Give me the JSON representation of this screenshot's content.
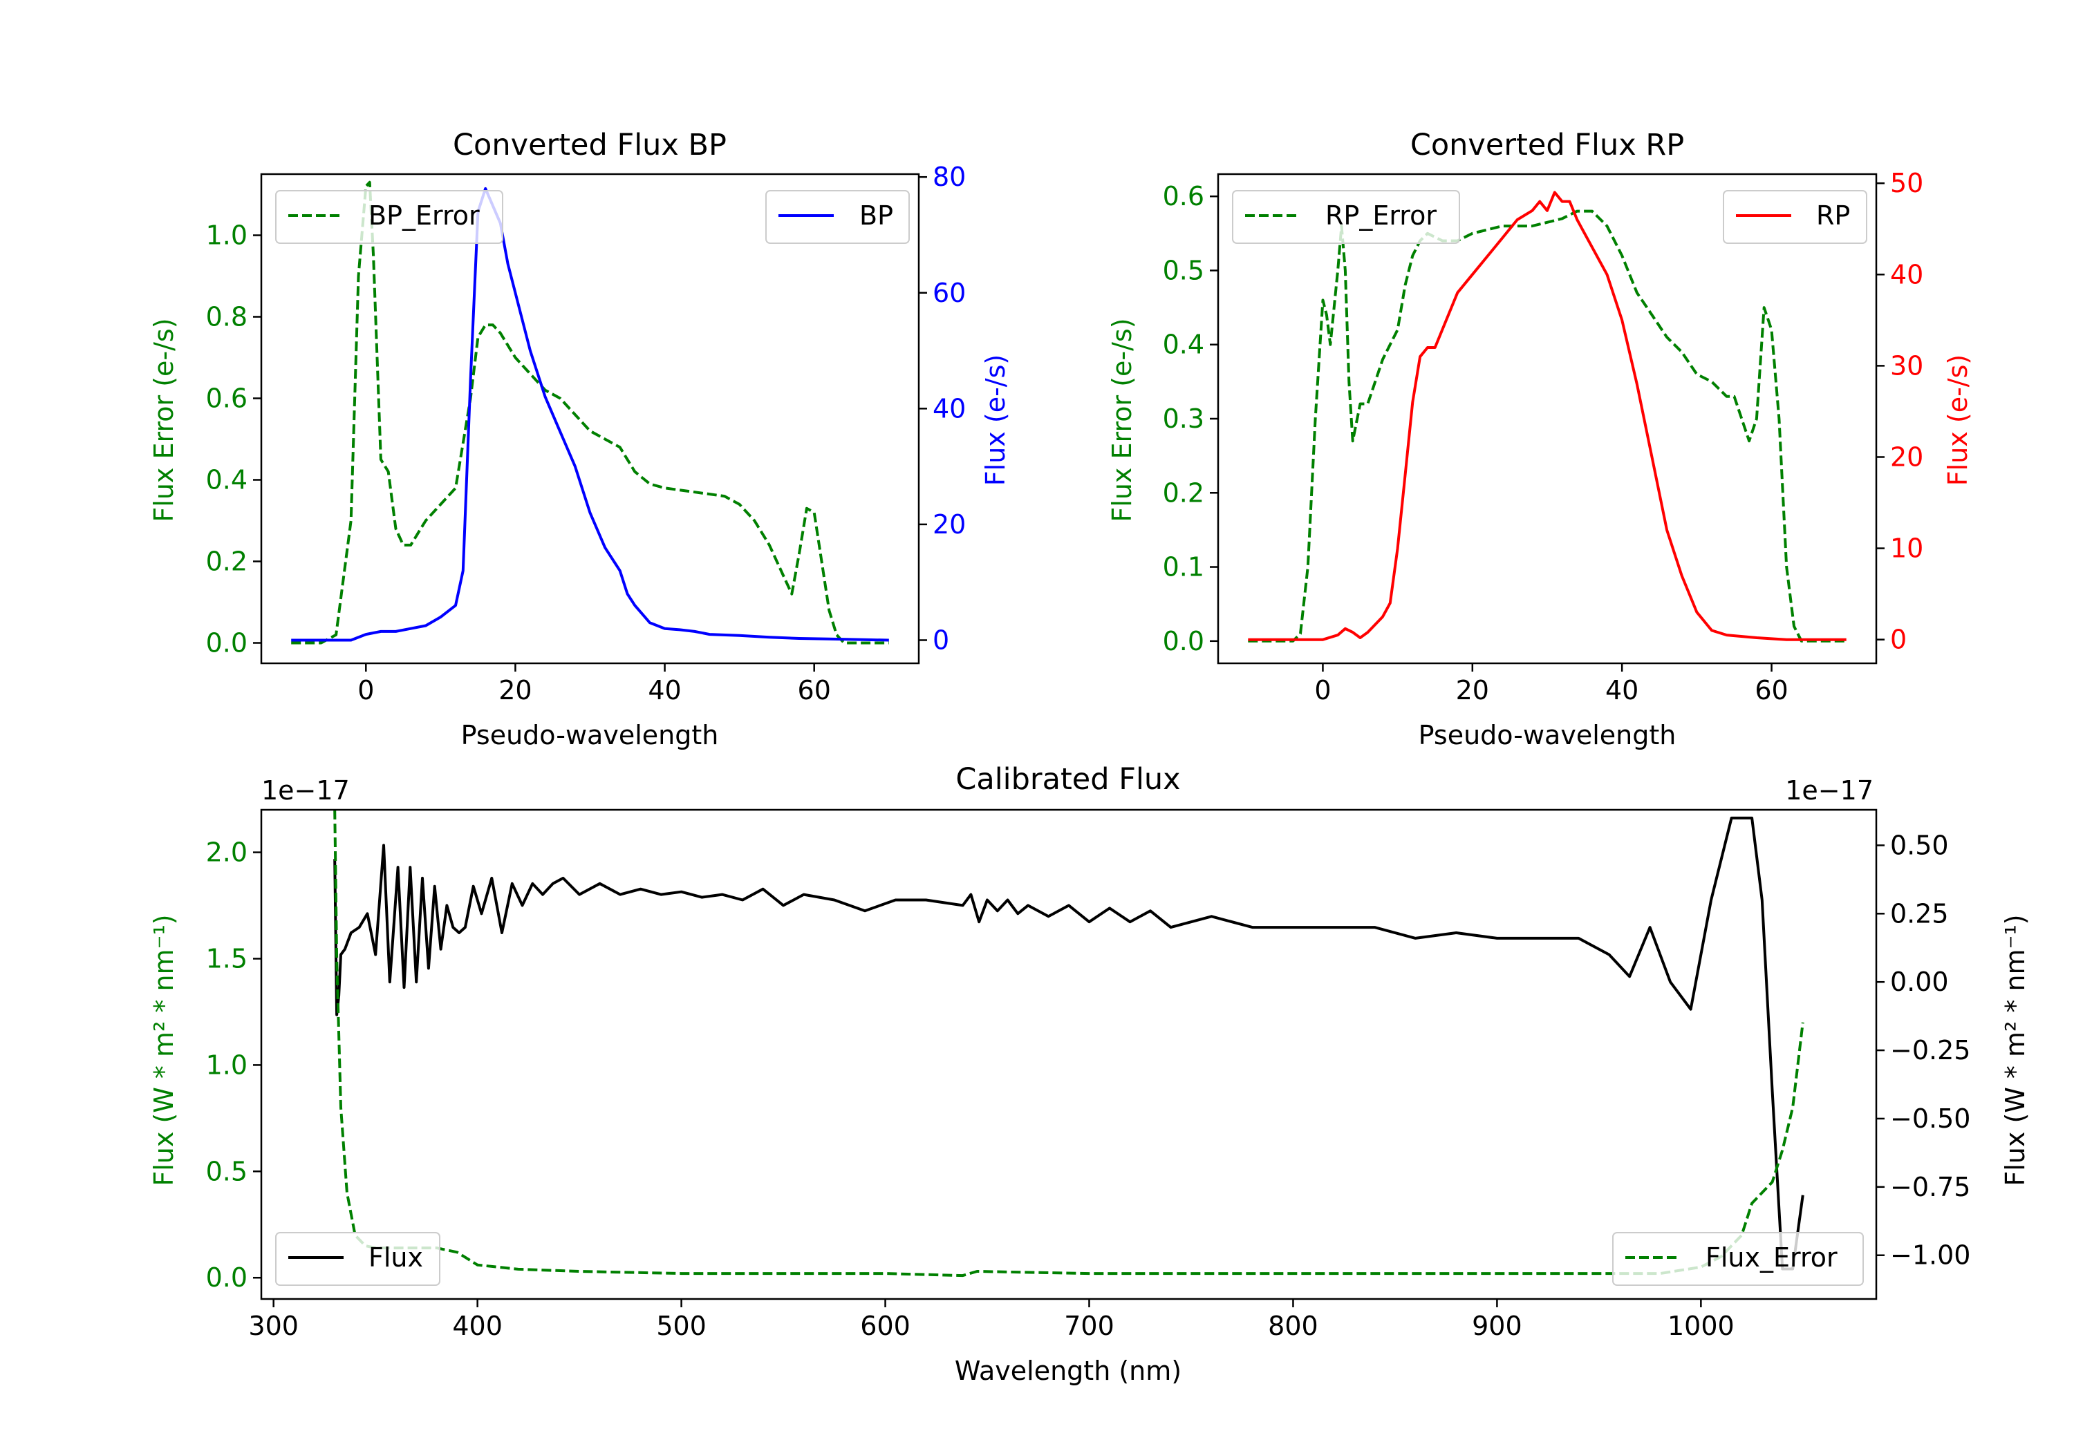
{
  "colors": {
    "error": "#008000",
    "bp": "#0000ff",
    "rp": "#ff0000",
    "flux": "#000000"
  },
  "chart_data": [
    {
      "id": "bp",
      "type": "line",
      "title": "Converted Flux BP",
      "xlabel": "Pseudo-wavelength",
      "ylabel_left": "Flux Error (e-/s)",
      "ylabel_right": "Flux (e-/s)",
      "xlim": [
        -14,
        74
      ],
      "ylim_left": [
        -0.05,
        1.15
      ],
      "ylim_right": [
        -4,
        80.5
      ],
      "xticks": [
        0,
        20,
        40,
        60
      ],
      "yticks_left": [
        "0.0",
        "0.2",
        "0.4",
        "0.6",
        "0.8",
        "1.0"
      ],
      "yticks_right": [
        "0",
        "20",
        "40",
        "60",
        "80"
      ],
      "legend_left": "BP_Error",
      "legend_right": "BP",
      "series": [
        {
          "name": "BP_Error",
          "axis": "left",
          "style": "dashed",
          "color": "#008000",
          "x": [
            -10,
            -6,
            -4,
            -2,
            -1,
            0,
            0.5,
            1,
            1.5,
            2,
            3,
            4,
            5,
            6,
            7,
            8,
            9,
            10,
            12,
            14,
            15,
            16,
            17,
            18,
            20,
            22,
            24,
            26,
            28,
            30,
            32,
            34,
            36,
            38,
            40,
            44,
            48,
            50,
            52,
            54,
            56,
            57,
            58,
            59,
            60,
            61,
            62,
            63,
            64,
            66,
            70
          ],
          "values": [
            0.0,
            0.0,
            0.02,
            0.3,
            0.9,
            1.12,
            1.13,
            0.95,
            0.7,
            0.45,
            0.42,
            0.28,
            0.24,
            0.24,
            0.27,
            0.3,
            0.32,
            0.34,
            0.38,
            0.6,
            0.75,
            0.78,
            0.78,
            0.76,
            0.7,
            0.66,
            0.62,
            0.6,
            0.56,
            0.52,
            0.5,
            0.48,
            0.42,
            0.39,
            0.38,
            0.37,
            0.36,
            0.34,
            0.3,
            0.24,
            0.16,
            0.12,
            0.22,
            0.33,
            0.32,
            0.2,
            0.08,
            0.02,
            0.0,
            0.0,
            0.0
          ]
        },
        {
          "name": "BP",
          "axis": "right",
          "style": "solid",
          "color": "#0000ff",
          "x": [
            -10,
            -4,
            -2,
            0,
            2,
            4,
            6,
            8,
            10,
            12,
            13,
            14,
            15,
            16,
            17,
            18,
            19,
            20,
            22,
            24,
            26,
            28,
            30,
            32,
            34,
            35,
            36,
            38,
            40,
            42,
            44,
            46,
            50,
            54,
            58,
            62,
            66,
            70
          ],
          "values": [
            0,
            0,
            0,
            1,
            1.5,
            1.5,
            2,
            2.5,
            4,
            6,
            12,
            45,
            74,
            78,
            75,
            72,
            65,
            60,
            50,
            42,
            36,
            30,
            22,
            16,
            12,
            8,
            6,
            3,
            2,
            1.8,
            1.5,
            1.0,
            0.8,
            0.5,
            0.3,
            0.2,
            0.1,
            0
          ]
        }
      ]
    },
    {
      "id": "rp",
      "type": "line",
      "title": "Converted Flux RP",
      "xlabel": "Pseudo-wavelength",
      "ylabel_left": "Flux Error (e-/s)",
      "ylabel_right": "Flux (e-/s)",
      "xlim": [
        -14,
        74
      ],
      "ylim_left": [
        -0.03,
        0.63
      ],
      "ylim_right": [
        -2.6,
        51
      ],
      "xticks": [
        0,
        20,
        40,
        60
      ],
      "yticks_left": [
        "0.0",
        "0.1",
        "0.2",
        "0.3",
        "0.4",
        "0.5",
        "0.6"
      ],
      "yticks_right": [
        "0",
        "10",
        "20",
        "30",
        "40",
        "50"
      ],
      "legend_left": "RP_Error",
      "legend_right": "RP",
      "series": [
        {
          "name": "RP_Error",
          "axis": "left",
          "style": "dashed",
          "color": "#008000",
          "x": [
            -10,
            -4,
            -3,
            -2,
            -1,
            0,
            0.5,
            1,
            1.5,
            2,
            2.5,
            3,
            3.5,
            4,
            5,
            6,
            7,
            8,
            9,
            10,
            11,
            12,
            13,
            14,
            16,
            18,
            20,
            24,
            28,
            32,
            34,
            36,
            38,
            40,
            42,
            44,
            46,
            48,
            50,
            52,
            54,
            55,
            56,
            57,
            58,
            59,
            60,
            61,
            62,
            63,
            64,
            66,
            70
          ],
          "values": [
            0,
            0,
            0.01,
            0.1,
            0.3,
            0.46,
            0.44,
            0.4,
            0.45,
            0.5,
            0.56,
            0.5,
            0.35,
            0.27,
            0.32,
            0.32,
            0.35,
            0.38,
            0.4,
            0.42,
            0.48,
            0.52,
            0.54,
            0.55,
            0.54,
            0.54,
            0.55,
            0.56,
            0.56,
            0.57,
            0.58,
            0.58,
            0.56,
            0.52,
            0.47,
            0.44,
            0.41,
            0.39,
            0.36,
            0.35,
            0.33,
            0.33,
            0.3,
            0.27,
            0.3,
            0.45,
            0.42,
            0.3,
            0.1,
            0.02,
            0,
            0,
            0
          ]
        },
        {
          "name": "RP",
          "axis": "right",
          "style": "solid",
          "color": "#ff0000",
          "x": [
            -10,
            -2,
            0,
            2,
            3,
            4,
            5,
            6,
            8,
            9,
            10,
            11,
            12,
            13,
            14,
            15,
            16,
            18,
            20,
            22,
            24,
            26,
            28,
            29,
            30,
            31,
            32,
            33,
            34,
            36,
            38,
            40,
            42,
            44,
            46,
            48,
            50,
            52,
            54,
            58,
            62,
            66,
            70
          ],
          "values": [
            0,
            0,
            0,
            0.5,
            1.2,
            0.8,
            0.2,
            0.8,
            2.5,
            4,
            10,
            18,
            26,
            31,
            32,
            32,
            34,
            38,
            40,
            42,
            44,
            46,
            47,
            48,
            47,
            49,
            48,
            48,
            46,
            43,
            40,
            35,
            28,
            20,
            12,
            7,
            3,
            1,
            0.5,
            0.2,
            0,
            0,
            0
          ]
        }
      ]
    },
    {
      "id": "calibrated",
      "type": "line",
      "title": "Calibrated Flux",
      "xlabel": "Wavelength (nm)",
      "ylabel_left": "Flux (W * m² * nm⁻¹)",
      "ylabel_right": "Flux (W * m² * nm⁻¹)",
      "offset_left": "1e−17",
      "offset_right": "1e−17",
      "xlim": [
        294,
        1086
      ],
      "ylim_left": [
        -0.1,
        2.2
      ],
      "ylim_right": [
        -1.16,
        0.63
      ],
      "xticks": [
        300,
        400,
        500,
        600,
        700,
        800,
        900,
        1000
      ],
      "yticks_left": [
        "0.0",
        "0.5",
        "1.0",
        "1.5",
        "2.0"
      ],
      "yticks_right": [
        "0.50",
        "0.25",
        "0.00",
        "−0.25",
        "−0.50",
        "−0.75",
        "−1.00"
      ],
      "legend_left": "Flux",
      "legend_right": "Flux_Error",
      "series": [
        {
          "name": "Flux",
          "axis": "right",
          "style": "solid",
          "color": "#000000",
          "x": [
            330,
            331,
            332,
            333,
            335,
            338,
            342,
            346,
            350,
            354,
            357,
            361,
            364,
            367,
            370,
            373,
            376,
            379,
            382,
            385,
            388,
            391,
            394,
            398,
            402,
            407,
            412,
            417,
            422,
            427,
            432,
            437,
            442,
            450,
            460,
            470,
            480,
            490,
            500,
            510,
            520,
            530,
            540,
            550,
            560,
            575,
            590,
            605,
            620,
            638,
            642,
            646,
            650,
            655,
            660,
            665,
            670,
            680,
            690,
            700,
            710,
            720,
            730,
            740,
            760,
            780,
            800,
            820,
            840,
            860,
            880,
            900,
            920,
            940,
            955,
            965,
            975,
            985,
            995,
            1005,
            1015,
            1025,
            1030,
            1035,
            1040,
            1045,
            1050
          ],
          "values": [
            0.45,
            -0.12,
            -0.05,
            0.1,
            0.12,
            0.18,
            0.2,
            0.25,
            0.1,
            0.5,
            0.0,
            0.42,
            -0.02,
            0.42,
            0.0,
            0.38,
            0.05,
            0.35,
            0.12,
            0.28,
            0.2,
            0.18,
            0.2,
            0.35,
            0.25,
            0.38,
            0.18,
            0.36,
            0.28,
            0.36,
            0.32,
            0.36,
            0.38,
            0.32,
            0.36,
            0.32,
            0.34,
            0.32,
            0.33,
            0.31,
            0.32,
            0.3,
            0.34,
            0.28,
            0.32,
            0.3,
            0.26,
            0.3,
            0.3,
            0.28,
            0.32,
            0.22,
            0.3,
            0.26,
            0.3,
            0.25,
            0.28,
            0.24,
            0.28,
            0.22,
            0.27,
            0.22,
            0.26,
            0.2,
            0.24,
            0.2,
            0.2,
            0.2,
            0.2,
            0.16,
            0.18,
            0.16,
            0.16,
            0.16,
            0.1,
            0.02,
            0.2,
            0.0,
            -0.1,
            0.3,
            0.6,
            0.6,
            0.3,
            -0.4,
            -1.05,
            -1.05,
            -0.78
          ]
        },
        {
          "name": "Flux_Error",
          "axis": "left",
          "style": "dashed",
          "color": "#008000",
          "x": [
            330,
            331,
            333,
            336,
            340,
            345,
            350,
            360,
            370,
            380,
            390,
            400,
            420,
            450,
            500,
            550,
            600,
            638,
            645,
            700,
            800,
            900,
            950,
            980,
            1000,
            1010,
            1020,
            1025,
            1030,
            1035,
            1040,
            1045,
            1050
          ],
          "values": [
            2.2,
            1.5,
            0.8,
            0.4,
            0.2,
            0.15,
            0.14,
            0.14,
            0.14,
            0.14,
            0.12,
            0.06,
            0.04,
            0.03,
            0.02,
            0.02,
            0.02,
            0.01,
            0.03,
            0.02,
            0.02,
            0.02,
            0.02,
            0.02,
            0.05,
            0.1,
            0.2,
            0.35,
            0.4,
            0.45,
            0.6,
            0.8,
            1.2
          ]
        }
      ]
    }
  ]
}
